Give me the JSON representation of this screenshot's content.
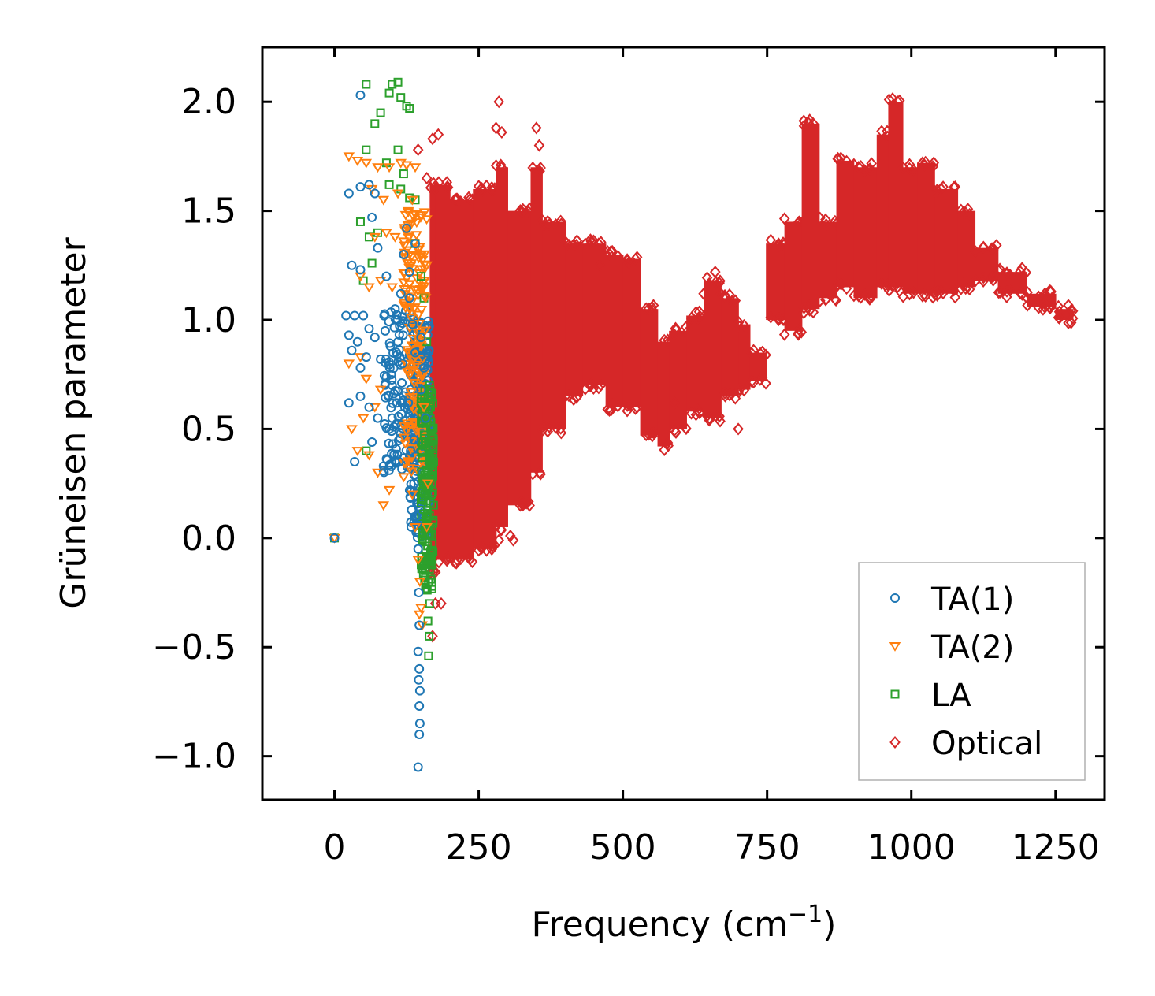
{
  "chart_data": {
    "type": "scatter",
    "title": "",
    "xlabel": "Frequency (cm",
    "xlabel_sup": "−1",
    "xlabel_end": ")",
    "ylabel": "Grüneisen parameter",
    "xlim": [
      -125,
      1335
    ],
    "ylim": [
      -1.2,
      2.25
    ],
    "xticks": [
      0,
      250,
      500,
      750,
      1000,
      1250
    ],
    "xtick_labels": [
      "0",
      "250",
      "500",
      "750",
      "1000",
      "1250"
    ],
    "yticks": [
      -1.0,
      -0.5,
      0.0,
      0.5,
      1.0,
      1.5,
      2.0
    ],
    "ytick_labels": [
      "−1.0",
      "−0.5",
      "0.0",
      "0.5",
      "1.0",
      "1.5",
      "2.0"
    ],
    "grid": false,
    "legend_position": "bottom-right",
    "series": [
      {
        "name": "TA(1)",
        "marker": "circle",
        "color": "#1f77b4",
        "points": [
          [
            0,
            0
          ],
          [
            45,
            2.03
          ],
          [
            25,
            1.58
          ],
          [
            45,
            1.61
          ],
          [
            60,
            1.62
          ],
          [
            70,
            1.58
          ],
          [
            30,
            1.25
          ],
          [
            45,
            1.23
          ],
          [
            65,
            1.47
          ],
          [
            75,
            1.33
          ],
          [
            20,
            1.02
          ],
          [
            35,
            1.02
          ],
          [
            50,
            1.02
          ],
          [
            25,
            0.93
          ],
          [
            40,
            0.9
          ],
          [
            55,
            0.83
          ],
          [
            30,
            0.86
          ],
          [
            45,
            0.78
          ],
          [
            60,
            0.96
          ],
          [
            70,
            0.92
          ],
          [
            80,
            0.82
          ],
          [
            25,
            0.62
          ],
          [
            45,
            0.65
          ],
          [
            60,
            0.6
          ],
          [
            75,
            0.55
          ],
          [
            35,
            0.35
          ],
          [
            65,
            0.44
          ],
          [
            85,
            0.33
          ],
          [
            95,
            0.5
          ],
          [
            100,
            0.7
          ],
          [
            110,
            0.9
          ],
          [
            115,
            1.12
          ],
          [
            120,
            1.3
          ],
          [
            125,
            1.42
          ],
          [
            130,
            1.1
          ],
          [
            135,
            0.98
          ],
          [
            140,
            0.85
          ],
          [
            128,
            0.62
          ],
          [
            132,
            0.4
          ],
          [
            138,
            0.25
          ],
          [
            142,
            0.1
          ],
          [
            145,
            -0.05
          ],
          [
            146,
            -0.25
          ],
          [
            147,
            -0.4
          ],
          [
            145,
            -0.52
          ],
          [
            147,
            -0.6
          ],
          [
            146,
            -0.65
          ],
          [
            148,
            -0.7
          ],
          [
            147,
            -0.77
          ],
          [
            148,
            -0.85
          ],
          [
            147,
            -0.9
          ],
          [
            145,
            -1.05
          ],
          [
            90,
            1.2
          ],
          [
            105,
            1.05
          ],
          [
            118,
            0.8
          ],
          [
            100,
            0.55
          ],
          [
            122,
            0.6
          ],
          [
            138,
            0.45
          ],
          [
            150,
            0.68
          ],
          [
            155,
            0.78
          ],
          [
            158,
            0.55
          ],
          [
            112,
            0.35
          ],
          [
            88,
            0.95
          ],
          [
            96,
            0.78
          ],
          [
            108,
            0.62
          ],
          [
            150,
            0.92
          ],
          [
            160,
            0.85
          ],
          [
            140,
            1.35
          ],
          [
            130,
            1.22
          ]
        ],
        "cloud": [
          {
            "x": [
              85,
              165
            ],
            "y": [
              0.3,
              1.05
            ]
          },
          {
            "x": [
              130,
              165
            ],
            "y": [
              0.0,
              0.9
            ]
          }
        ]
      },
      {
        "name": "TA(2)",
        "marker": "triangle-down",
        "color": "#ff7f0e",
        "points": [
          [
            0,
            0
          ],
          [
            25,
            1.75
          ],
          [
            40,
            1.73
          ],
          [
            55,
            1.72
          ],
          [
            75,
            1.7
          ],
          [
            95,
            1.7
          ],
          [
            115,
            1.72
          ],
          [
            125,
            1.71
          ],
          [
            140,
            1.7
          ],
          [
            65,
            1.6
          ],
          [
            85,
            1.55
          ],
          [
            110,
            1.58
          ],
          [
            135,
            1.55
          ],
          [
            150,
            1.48
          ],
          [
            70,
            1.38
          ],
          [
            90,
            1.4
          ],
          [
            105,
            1.38
          ],
          [
            120,
            1.36
          ],
          [
            145,
            1.32
          ],
          [
            45,
            1.2
          ],
          [
            60,
            1.15
          ],
          [
            80,
            1.18
          ],
          [
            100,
            1.15
          ],
          [
            130,
            1.05
          ],
          [
            25,
            0.8
          ],
          [
            45,
            0.83
          ],
          [
            55,
            0.73
          ],
          [
            70,
            0.6
          ],
          [
            80,
            0.68
          ],
          [
            30,
            0.5
          ],
          [
            50,
            0.55
          ],
          [
            40,
            0.4
          ],
          [
            60,
            0.38
          ],
          [
            75,
            0.3
          ],
          [
            95,
            0.22
          ],
          [
            85,
            0.15
          ],
          [
            120,
            0.28
          ],
          [
            135,
            0.2
          ],
          [
            140,
            0.05
          ],
          [
            145,
            -0.1
          ],
          [
            148,
            -0.2
          ],
          [
            150,
            -0.32
          ],
          [
            147,
            -0.35
          ],
          [
            152,
            -0.4
          ],
          [
            160,
            0.05
          ],
          [
            162,
            0.25
          ],
          [
            155,
            0.6
          ],
          [
            150,
            0.9
          ],
          [
            158,
            1.1
          ],
          [
            160,
            1.25
          ]
        ],
        "cloud": [
          {
            "x": [
              120,
              160
            ],
            "y": [
              0.3,
              1.5
            ]
          }
        ]
      },
      {
        "name": "LA",
        "marker": "square",
        "color": "#2ca02c",
        "points": [
          [
            0,
            0
          ],
          [
            55,
            2.08
          ],
          [
            95,
            2.04
          ],
          [
            100,
            2.08
          ],
          [
            110,
            2.09
          ],
          [
            115,
            2.02
          ],
          [
            125,
            1.98
          ],
          [
            130,
            1.97
          ],
          [
            80,
            1.95
          ],
          [
            70,
            1.9
          ],
          [
            55,
            1.78
          ],
          [
            90,
            1.72
          ],
          [
            110,
            1.78
          ],
          [
            120,
            1.67
          ],
          [
            95,
            1.62
          ],
          [
            115,
            1.6
          ],
          [
            130,
            1.56
          ],
          [
            140,
            1.55
          ],
          [
            60,
            1.38
          ],
          [
            75,
            1.4
          ],
          [
            45,
            1.45
          ],
          [
            50,
            1.18
          ],
          [
            65,
            1.26
          ],
          [
            140,
            1.35
          ],
          [
            150,
            1.2
          ],
          [
            155,
            1.1
          ],
          [
            160,
            0.9
          ],
          [
            165,
            0.7
          ],
          [
            168,
            0.5
          ],
          [
            170,
            0.35
          ],
          [
            168,
            0.2
          ],
          [
            165,
            0.05
          ],
          [
            162,
            -0.1
          ],
          [
            163,
            -0.2
          ],
          [
            165,
            -0.3
          ],
          [
            162,
            -0.38
          ],
          [
            164,
            -0.45
          ],
          [
            163,
            -0.54
          ],
          [
            55,
            0.4
          ],
          [
            165,
            0.62
          ],
          [
            170,
            0.42
          ],
          [
            160,
            0.28
          ],
          [
            158,
            -0.05
          ]
        ],
        "cloud": [
          {
            "x": [
              150,
              172
            ],
            "y": [
              -0.25,
              0.7
            ]
          }
        ]
      },
      {
        "name": "Optical",
        "marker": "diamond",
        "color": "#d62728",
        "points": [
          [
            285,
            2.0
          ],
          [
            280,
            1.88
          ],
          [
            290,
            1.86
          ],
          [
            350,
            1.88
          ],
          [
            355,
            1.8
          ],
          [
            145,
            1.78
          ],
          [
            170,
            1.83
          ],
          [
            180,
            1.85
          ],
          [
            160,
            1.65
          ],
          [
            175,
            1.6
          ],
          [
            175,
            -0.3
          ],
          [
            185,
            -0.3
          ],
          [
            170,
            -0.45
          ],
          [
            285,
            -0.01
          ],
          [
            305,
            0.01
          ],
          [
            310,
            -0.01
          ],
          [
            650,
            0.55
          ],
          [
            660,
            1.22
          ],
          [
            670,
            1.12
          ],
          [
            590,
            0.62
          ],
          [
            700,
            0.5
          ],
          [
            460,
            1.25
          ],
          [
            640,
            1.12
          ]
        ],
        "bands": [
          {
            "x": [
              165,
              175
            ],
            "ylo": -0.15,
            "yhi": 1.62
          },
          {
            "x": [
              175,
              200
            ],
            "ylo": -0.1,
            "yhi": 1.62
          },
          {
            "x": [
              200,
              240
            ],
            "ylo": -0.1,
            "yhi": 1.55
          },
          {
            "x": [
              240,
              280
            ],
            "ylo": -0.05,
            "yhi": 1.6
          },
          {
            "x": [
              280,
              300
            ],
            "ylo": 0.05,
            "yhi": 1.7
          },
          {
            "x": [
              300,
              340
            ],
            "ylo": 0.15,
            "yhi": 1.5
          },
          {
            "x": [
              340,
              360
            ],
            "ylo": 0.3,
            "yhi": 1.7
          },
          {
            "x": [
              360,
              400
            ],
            "ylo": 0.5,
            "yhi": 1.45
          },
          {
            "x": [
              400,
              430
            ],
            "ylo": 0.65,
            "yhi": 1.35
          },
          {
            "x": [
              430,
              470
            ],
            "ylo": 0.7,
            "yhi": 1.35
          },
          {
            "x": [
              470,
              500
            ],
            "ylo": 0.6,
            "yhi": 1.3
          },
          {
            "x": [
              500,
              530
            ],
            "ylo": 0.6,
            "yhi": 1.28
          },
          {
            "x": [
              530,
              560
            ],
            "ylo": 0.47,
            "yhi": 1.05
          },
          {
            "x": [
              560,
              580
            ],
            "ylo": 0.42,
            "yhi": 0.9
          },
          {
            "x": [
              580,
              610
            ],
            "ylo": 0.5,
            "yhi": 0.95
          },
          {
            "x": [
              610,
              640
            ],
            "ylo": 0.58,
            "yhi": 1.02
          },
          {
            "x": [
              640,
              670
            ],
            "ylo": 0.55,
            "yhi": 1.18
          },
          {
            "x": [
              670,
              700
            ],
            "ylo": 0.65,
            "yhi": 1.1
          },
          {
            "x": [
              700,
              720
            ],
            "ylo": 0.68,
            "yhi": 0.98
          },
          {
            "x": [
              720,
              748
            ],
            "ylo": 0.72,
            "yhi": 0.85
          },
          {
            "x": [
              748,
              780
            ],
            "ylo": 1.0,
            "yhi": 1.35
          },
          {
            "x": [
              780,
              810
            ],
            "ylo": 0.95,
            "yhi": 1.45
          },
          {
            "x": [
              810,
              840
            ],
            "ylo": 1.05,
            "yhi": 1.9
          },
          {
            "x": [
              840,
              870
            ],
            "ylo": 1.1,
            "yhi": 1.45
          },
          {
            "x": [
              870,
              900
            ],
            "ylo": 1.15,
            "yhi": 1.73
          },
          {
            "x": [
              900,
              940
            ],
            "ylo": 1.1,
            "yhi": 1.7
          },
          {
            "x": [
              940,
              960
            ],
            "ylo": 1.15,
            "yhi": 1.85
          },
          {
            "x": [
              960,
              985
            ],
            "ylo": 1.15,
            "yhi": 2.0
          },
          {
            "x": [
              985,
              1010
            ],
            "ylo": 1.12,
            "yhi": 1.7
          },
          {
            "x": [
              1010,
              1040
            ],
            "ylo": 1.12,
            "yhi": 1.72
          },
          {
            "x": [
              1040,
              1080
            ],
            "ylo": 1.12,
            "yhi": 1.6
          },
          {
            "x": [
              1080,
              1110
            ],
            "ylo": 1.15,
            "yhi": 1.5
          },
          {
            "x": [
              1110,
              1150
            ],
            "ylo": 1.18,
            "yhi": 1.33
          },
          {
            "x": [
              1150,
              1200
            ],
            "ylo": 1.12,
            "yhi": 1.22
          },
          {
            "x": [
              1200,
              1250
            ],
            "ylo": 1.06,
            "yhi": 1.12
          },
          {
            "x": [
              1250,
              1280
            ],
            "ylo": 1.0,
            "yhi": 1.05
          }
        ]
      }
    ]
  }
}
